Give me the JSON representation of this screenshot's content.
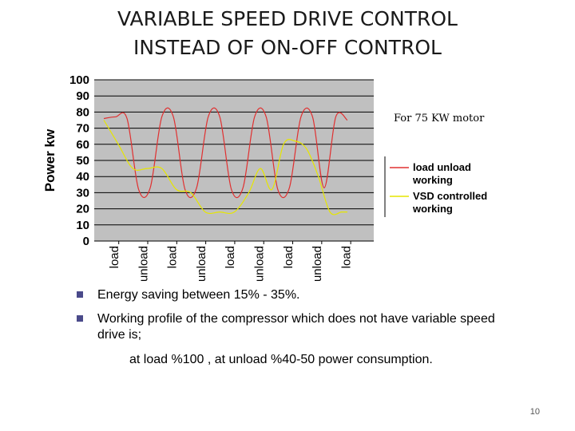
{
  "slide": {
    "title_line1": "VARIABLE SPEED DRIVE  CONTROL",
    "title_line2": "INSTEAD OF ON-OFF CONTROL",
    "bullet1": "Energy saving between 15% - 35%.",
    "bullet2": "Working profile of the compressor which does not have variable speed drive is;",
    "subline": "at load %100 , at unload %40-50 power consumption.",
    "page_number": "10",
    "bullet_color": "#4a4a8a"
  },
  "chart_data": {
    "type": "line",
    "ylabel": "Power kw",
    "ylim": [
      0,
      100
    ],
    "yticks": [
      "100",
      "90",
      "80",
      "70",
      "60",
      "50",
      "40",
      "30",
      "20",
      "10",
      "0"
    ],
    "categories": [
      "load",
      "unload",
      "load",
      "unload",
      "load",
      "unload",
      "load",
      "unload",
      "load"
    ],
    "annotation": "For 75 KW motor",
    "grid": true,
    "plot_background": "#c0c0c0",
    "legend_position": "right",
    "series": [
      {
        "name": "load unload working",
        "color": "#e03030",
        "x": [
          0,
          0.4,
          0.8,
          1.2,
          1.6,
          2.0,
          2.4,
          2.8,
          3.2,
          3.6,
          4.0,
          4.4,
          4.8,
          5.2,
          5.6,
          6.0,
          6.4,
          6.8,
          7.2,
          7.6,
          8.0,
          8.4
        ],
        "values": [
          76,
          77,
          76,
          32,
          33,
          77,
          77,
          32,
          33,
          77,
          77,
          32,
          33,
          77,
          77,
          32,
          33,
          77,
          77,
          33,
          77,
          75
        ]
      },
      {
        "name": "VSD controlled working",
        "color": "#e6e600",
        "x": [
          0,
          0.5,
          1.0,
          1.5,
          2.0,
          2.5,
          3.0,
          3.5,
          4.0,
          4.5,
          5.0,
          5.4,
          5.8,
          6.2,
          6.6,
          7.0,
          7.4,
          7.8,
          8.2,
          8.4
        ],
        "values": [
          75,
          60,
          45,
          45,
          45,
          32,
          30,
          18,
          18,
          18,
          30,
          45,
          32,
          60,
          62,
          57,
          40,
          18,
          18,
          18
        ]
      }
    ]
  }
}
